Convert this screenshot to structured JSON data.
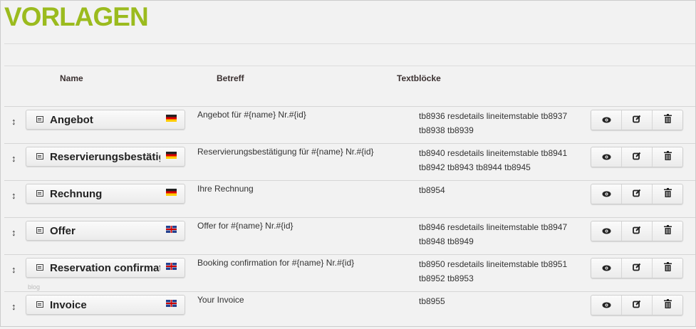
{
  "title": "VORLAGEN",
  "columns": {
    "name": "Name",
    "subject": "Betreff",
    "textblocks": "Textblöcke"
  },
  "accent": "#9bbb1e",
  "rows": [
    {
      "name": "Angebot",
      "lang": "de",
      "flag": "german-flag-icon",
      "subject": "Angebot für #{name} Nr.#{id}",
      "textblocks": "tb8936 resdetails lineitemstable tb8937 tb8938 tb8939"
    },
    {
      "name": "Reservierungsbestätig",
      "lang": "de",
      "flag": "german-flag-icon",
      "subject": "Reservierungsbestätigung für #{name} Nr.#{id}",
      "textblocks": "tb8940 resdetails lineitemstable tb8941 tb8942 tb8943 tb8944 tb8945"
    },
    {
      "name": "Rechnung",
      "lang": "de",
      "flag": "german-flag-icon",
      "subject": "Ihre Rechnung",
      "textblocks": "tb8954"
    },
    {
      "name": "Offer",
      "lang": "en",
      "flag": "uk-flag-icon",
      "subject": "Offer for #{name} Nr.#{id}",
      "textblocks": "tb8946 resdetails lineitemstable tb8947 tb8948 tb8949"
    },
    {
      "name": "Reservation confirmati",
      "lang": "en",
      "flag": "uk-flag-icon",
      "subject": "Booking confirmation for #{name} Nr.#{id}",
      "textblocks": "tb8950 resdetails lineitemstable tb8951 tb8952 tb8953"
    },
    {
      "name": "Invoice",
      "lang": "en",
      "flag": "uk-flag-icon",
      "subject": "Your Invoice",
      "textblocks": "tb8955",
      "ghost_label": "blog"
    }
  ],
  "icons": {
    "drag": "drag-handle-icon",
    "template": "template-icon",
    "view": "eye-icon",
    "edit": "edit-icon",
    "delete": "trash-icon"
  }
}
